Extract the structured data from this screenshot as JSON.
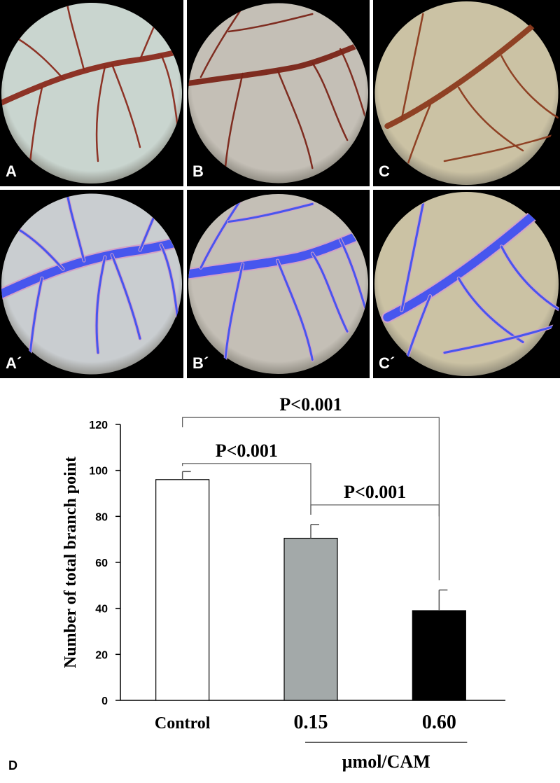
{
  "panels": [
    {
      "label": "A",
      "vessel": "#8a2a1c",
      "bg": "#c9d5cf",
      "overlay": false
    },
    {
      "label": "B",
      "vessel": "#7a2418",
      "bg": "#c4bfb6",
      "overlay": false
    },
    {
      "label": "C",
      "vessel": "#8b3a1e",
      "bg": "#cbc2a4",
      "overlay": false
    },
    {
      "label": "A´",
      "vessel": "#3f52f0",
      "bg": "#c9cdd0",
      "overlay": true
    },
    {
      "label": "B´",
      "vessel": "#3f52f0",
      "bg": "#c4bfb6",
      "overlay": true
    },
    {
      "label": "C´",
      "vessel": "#3f52f0",
      "bg": "#cbc2a4",
      "overlay": true
    }
  ],
  "panel_d_label": "D",
  "chart_data": {
    "type": "bar",
    "categories": [
      "Control",
      "0.15",
      "0.60"
    ],
    "values": [
      96,
      70.5,
      39
    ],
    "errors": [
      3.5,
      6,
      9
    ],
    "bar_colors": [
      "#ffffff",
      "#a3a9a9",
      "#000000"
    ],
    "ylabel": "Number of total branch point",
    "xlabel": "µmol/CAM",
    "ylim": [
      0,
      120
    ],
    "yticks": [
      0,
      20,
      40,
      60,
      80,
      100,
      120
    ],
    "significance": [
      {
        "from": 0,
        "to": 1,
        "label": "P<0.001",
        "level": 103
      },
      {
        "from": 0,
        "to": 2,
        "label": "P<0.001",
        "level": 123
      },
      {
        "from": 1,
        "to": 2,
        "label": "P<0.001",
        "level": 85
      }
    ]
  }
}
